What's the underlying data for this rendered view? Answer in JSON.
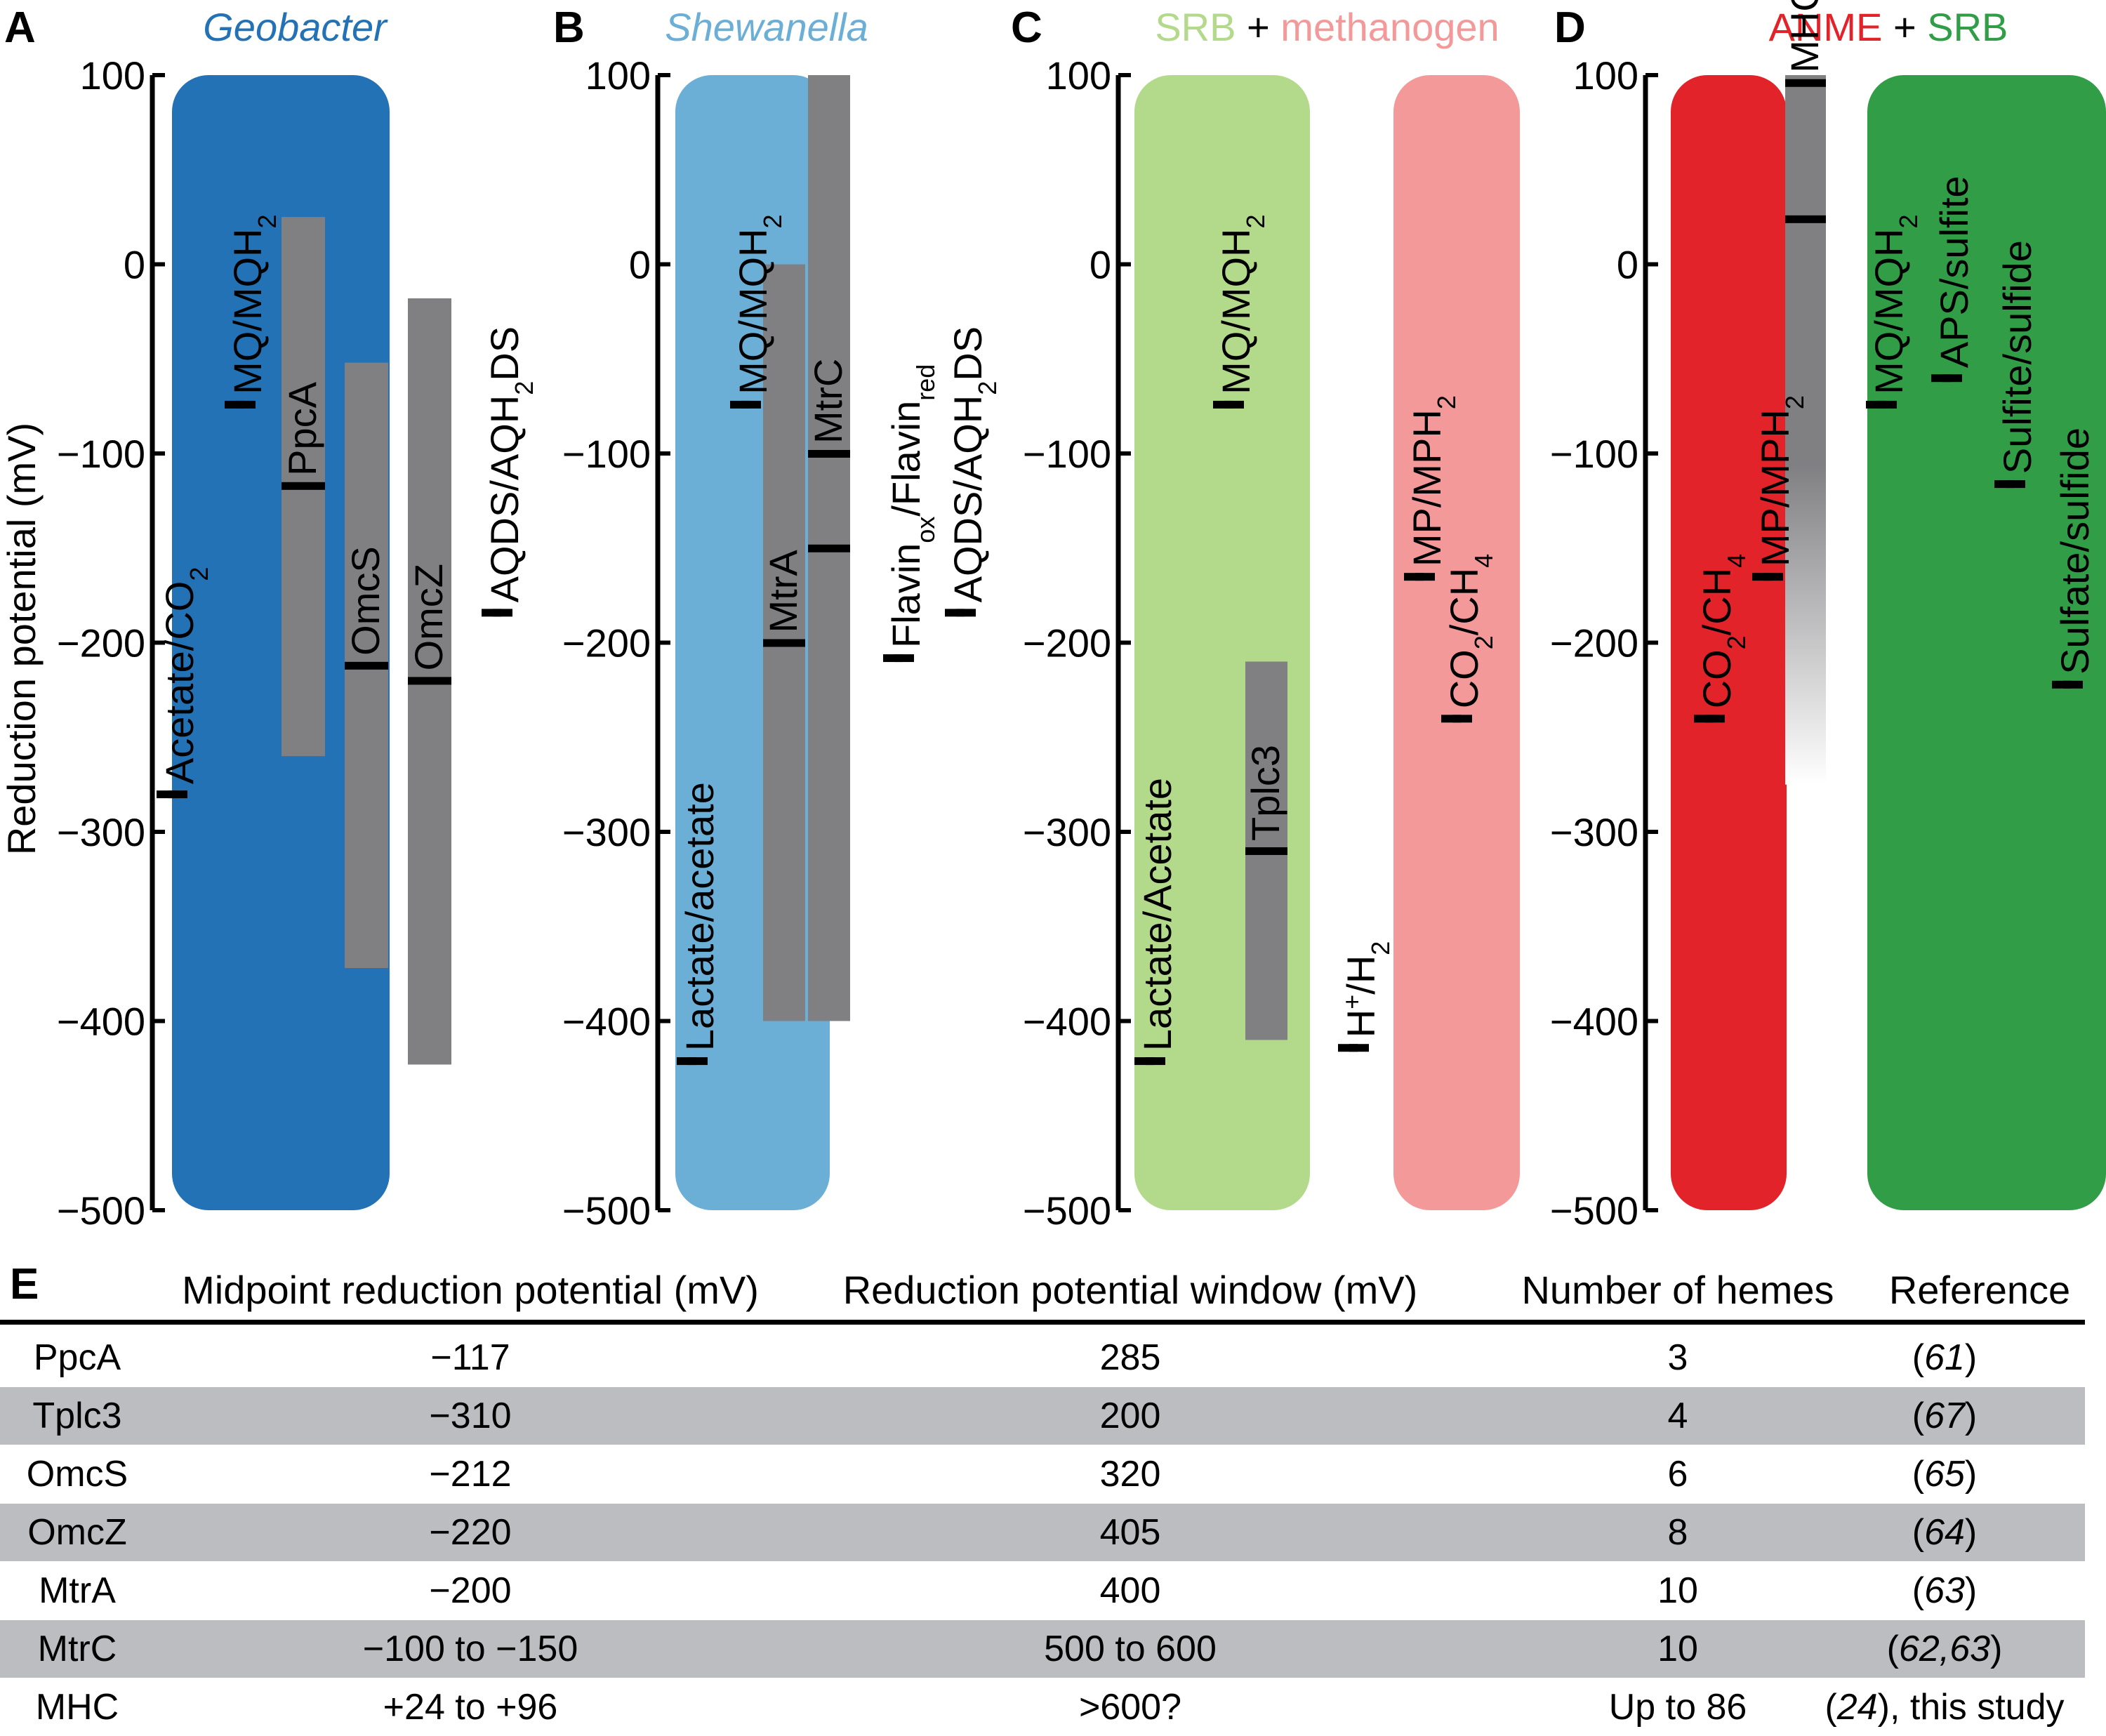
{
  "panels": [
    {
      "letter": "A",
      "title": [
        {
          "text": "Geobacter",
          "color": "#2272b5",
          "italic": true
        }
      ],
      "ylabel": "Reduction potential (mV)",
      "boxes": [
        {
          "name": "Geobacter",
          "color": "#2272b5",
          "y_top": 100,
          "y_bottom": -500
        }
      ],
      "bars": [
        {
          "label": "PpcA",
          "y_top": 25,
          "y_bottom": -260,
          "midpoint": -117
        },
        {
          "label": "OmcS",
          "y_top": -52,
          "y_bottom": -372,
          "midpoint": -212
        },
        {
          "label": "OmcZ",
          "y_top": -18,
          "y_bottom": -423,
          "midpoint": -220
        }
      ],
      "couples": [
        {
          "label": "Acetate/CO2",
          "main": "Acetate/CO",
          "sub": "2",
          "value": -280
        },
        {
          "label": "MQ/MQH2",
          "main": "MQ/MQH",
          "sub": "2",
          "value": -74
        },
        {
          "label": "AQDS/AQH2DS",
          "main": "AQDS/AQH",
          "sub": "2",
          "tail": "DS",
          "value": -184
        }
      ]
    },
    {
      "letter": "B",
      "title": [
        {
          "text": "Shewanella",
          "color": "#6baed6",
          "italic": true
        }
      ],
      "boxes": [
        {
          "name": "Shewanella",
          "color": "#6baed6",
          "y_top": 100,
          "y_bottom": -500
        }
      ],
      "bars": [
        {
          "label": "MtrA",
          "y_top": 0,
          "y_bottom": -400,
          "midpoint": -200
        },
        {
          "label": "MtrC",
          "y_top": 100,
          "y_bottom": -400,
          "midpoint_range": [
            -100,
            -150
          ]
        }
      ],
      "couples": [
        {
          "label": "Lactate/acetate",
          "main": "Lactate/acetate",
          "value": -421
        },
        {
          "label": "MQ/MQH2",
          "main": "MQ/MQH",
          "sub": "2",
          "value": -74
        },
        {
          "label": "Flavinox/Flavinred",
          "main": "Flavin",
          "sub": "ox",
          "main2": "/Flavin",
          "sub2": "red",
          "value": -208
        },
        {
          "label": "AQDS/AQH2DS",
          "main": "AQDS/AQH",
          "sub": "2",
          "tail": "DS",
          "value": -184
        }
      ]
    },
    {
      "letter": "C",
      "title": [
        {
          "text": "SRB",
          "color": "#b3d98a"
        },
        {
          "text": " + ",
          "color": "#000000"
        },
        {
          "text": "methanogen",
          "color": "#f4999a"
        }
      ],
      "boxes": [
        {
          "name": "SRB",
          "color": "#b3d98a",
          "y_top": 100,
          "y_bottom": -500
        },
        {
          "name": "methanogen",
          "color": "#f4999a",
          "y_top": 100,
          "y_bottom": -500
        }
      ],
      "bars": [
        {
          "label": "Tplc3",
          "y_top": -210,
          "y_bottom": -410,
          "midpoint": -310
        }
      ],
      "couples": [
        {
          "label": "Lactate/Acetate",
          "main": "Lactate/Acetate",
          "value": -421
        },
        {
          "label": "MQ/MQH2",
          "main": "MQ/MQH",
          "sub": "2",
          "value": -74
        },
        {
          "label": "H+/H2",
          "main": "H",
          "sup": "+",
          "main2": "/H",
          "sub2": "2",
          "value": -414
        },
        {
          "label": "MP/MPH2",
          "main": "MP/MPH",
          "sub": "2",
          "value": -165
        },
        {
          "label": "CO2/CH4",
          "main": "CO",
          "sub": "2",
          "main2": "/CH",
          "sub2": "4",
          "value": -240
        }
      ]
    },
    {
      "letter": "D",
      "title": [
        {
          "text": "ANME",
          "color": "#e2242a"
        },
        {
          "text": " + ",
          "color": "#000000"
        },
        {
          "text": "SRB",
          "color": "#319e47"
        }
      ],
      "boxes": [
        {
          "name": "ANME",
          "color": "#e2242a",
          "y_top": 100,
          "y_bottom": -500
        },
        {
          "name": "SRB",
          "color": "#319e47",
          "y_top": 100,
          "y_bottom": -500
        }
      ],
      "bars": [
        {
          "label": "MHC",
          "y_top": 100,
          "y_bottom": -275,
          "midpoint_range": [
            96,
            24
          ],
          "gradient": true
        }
      ],
      "couples": [
        {
          "label": "CO2/CH4",
          "main": "CO",
          "sub": "2",
          "main2": "/CH",
          "sub2": "4",
          "value": -240
        },
        {
          "label": "MP/MPH2",
          "main": "MP/MPH",
          "sub": "2",
          "value": -165
        },
        {
          "label": "MQ/MQH2",
          "main": "MQ/MQH",
          "sub": "2",
          "value": -74
        },
        {
          "label": "APS/sulfite",
          "main": "APS/sulfite",
          "value": -60
        },
        {
          "label": "Sulfite/sulfide",
          "main": "Sulfite/sulfide",
          "value": -116
        },
        {
          "label": "Sulfate/sulfide",
          "main": "Sulfate/sulfide",
          "value": -222
        }
      ]
    }
  ],
  "chart_data": {
    "type": "bar",
    "ylim": [
      -500,
      100
    ],
    "yticks": [
      100,
      0,
      -100,
      -200,
      -300,
      -400,
      -500
    ],
    "ytick_labels": [
      "100",
      "0",
      "−100",
      "−200",
      "−300",
      "−400",
      "−500"
    ],
    "ylabel": "Reduction potential (mV)",
    "series": [
      {
        "name": "PpcA",
        "range": [
          -260,
          25
        ],
        "midpoint": -117
      },
      {
        "name": "OmcS",
        "range": [
          -372,
          -52
        ],
        "midpoint": -212
      },
      {
        "name": "OmcZ",
        "range": [
          -423,
          -18
        ],
        "midpoint": -220
      },
      {
        "name": "MtrA",
        "range": [
          -400,
          0
        ],
        "midpoint": -200
      },
      {
        "name": "MtrC",
        "range": [
          -400,
          100
        ],
        "midpoint": [
          -100,
          -150
        ]
      },
      {
        "name": "Tplc3",
        "range": [
          -410,
          -210
        ],
        "midpoint": -310
      },
      {
        "name": "MHC",
        "range": [
          -275,
          100
        ],
        "midpoint": [
          24,
          96
        ]
      }
    ]
  },
  "table": {
    "letter": "E",
    "headers": [
      "Midpoint reduction potential (mV)",
      "Reduction potential window (mV)",
      "Number of hemes",
      "Reference"
    ],
    "rows": [
      {
        "name": "PpcA",
        "midpoint": "−117",
        "window": "285",
        "hemes": "3",
        "ref_pre": "(",
        "ref_it": "61",
        "ref_post": ")",
        "shaded": false
      },
      {
        "name": "Tplc3",
        "midpoint": "−310",
        "window": "200",
        "hemes": "4",
        "ref_pre": "(",
        "ref_it": "67",
        "ref_post": ")",
        "shaded": true
      },
      {
        "name": "OmcS",
        "midpoint": "−212",
        "window": "320",
        "hemes": "6",
        "ref_pre": "(",
        "ref_it": "65",
        "ref_post": ")",
        "shaded": false
      },
      {
        "name": "OmcZ",
        "midpoint": "−220",
        "window": "405",
        "hemes": "8",
        "ref_pre": "(",
        "ref_it": "64",
        "ref_post": ")",
        "shaded": true
      },
      {
        "name": "MtrA",
        "midpoint": "−200",
        "window": "400",
        "hemes": "10",
        "ref_pre": "(",
        "ref_it": "63",
        "ref_post": ")",
        "shaded": false
      },
      {
        "name": "MtrC",
        "midpoint": "−100 to −150",
        "window": "500 to 600",
        "hemes": "10",
        "ref_pre": "(",
        "ref_it": "62,63",
        "ref_post": ")",
        "shaded": true
      },
      {
        "name": "MHC",
        "midpoint": "+24 to +96",
        "window": ">600?",
        "hemes": "Up to 86",
        "ref_pre": "(",
        "ref_it": "24",
        "ref_post": "), this study",
        "shaded": false
      }
    ]
  }
}
